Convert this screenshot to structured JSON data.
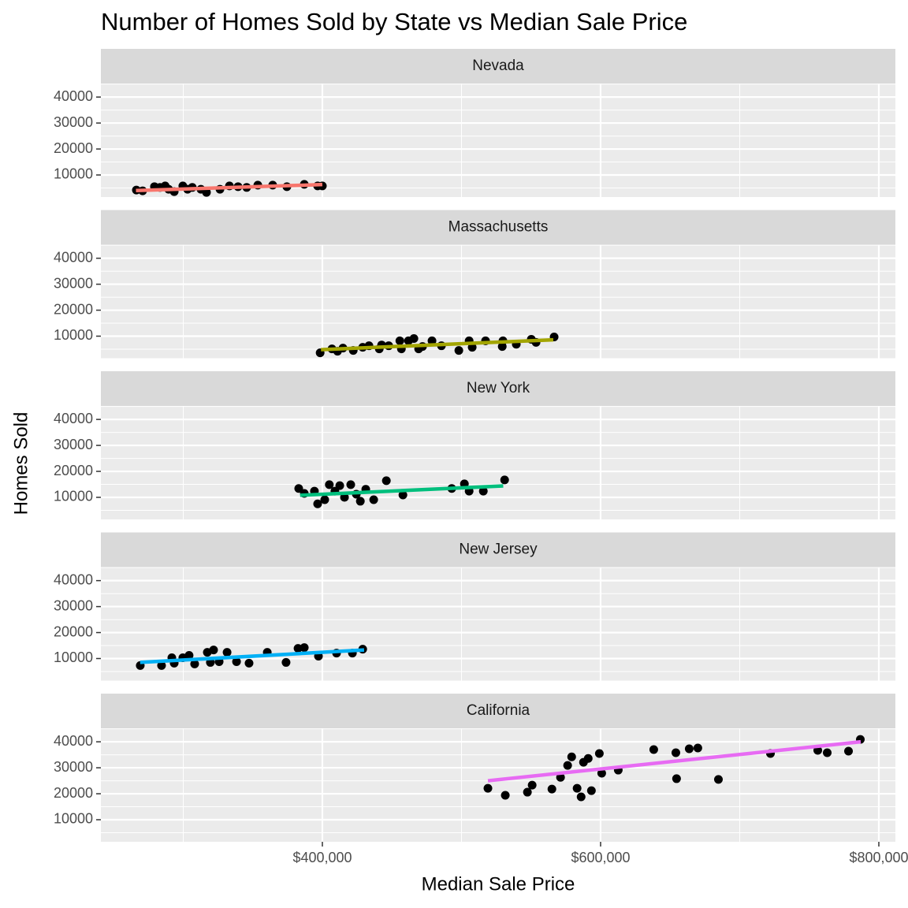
{
  "chart_data": {
    "type": "scatter",
    "title": "Number of Homes Sold by State vs Median Sale Price",
    "xlabel": "Median Sale Price",
    "ylabel": "Homes Sold",
    "facet": true,
    "grid": true,
    "xlim": [
      240800,
      811900
    ],
    "xticks": [
      {
        "value": 400000,
        "label": "$400,000"
      },
      {
        "value": 600000,
        "label": "$600,000"
      },
      {
        "value": 800000,
        "label": "$800,000"
      }
    ],
    "ylim": [
      1500,
      45200
    ],
    "yticks": [
      10000,
      20000,
      30000,
      40000
    ],
    "series": [
      {
        "name": "Nevada",
        "color": "#F8766D",
        "x": [
          266300,
          270800,
          279300,
          283300,
          287000,
          289500,
          293500,
          299700,
          303100,
          306500,
          312700,
          316700,
          326400,
          333200,
          339400,
          345600,
          353600,
          364300,
          374500,
          387000,
          396600,
          400000
        ],
        "values": [
          4200,
          3900,
          5500,
          5200,
          5800,
          4500,
          3600,
          5800,
          4500,
          5200,
          4500,
          3300,
          4500,
          5800,
          5500,
          5200,
          6100,
          6100,
          5500,
          6400,
          5800,
          5800
        ],
        "fit": {
          "x": [
            266000,
            400000
          ],
          "y": [
            4000,
            6300
          ]
        }
      },
      {
        "name": "Massachusetts",
        "color": "#A3A500",
        "x": [
          398400,
          406900,
          410900,
          414800,
          422200,
          429000,
          433500,
          440900,
          442600,
          447700,
          455700,
          456800,
          461900,
          465800,
          469200,
          472000,
          478800,
          485600,
          498100,
          505500,
          507700,
          517300,
          529800,
          529300,
          539400,
          550200,
          553600,
          566600
        ],
        "values": [
          3600,
          5100,
          4200,
          5400,
          4500,
          5700,
          6300,
          5100,
          6600,
          6300,
          8200,
          5100,
          8200,
          9100,
          5100,
          6000,
          8200,
          6300,
          4500,
          8200,
          5700,
          8200,
          8200,
          6000,
          6900,
          8800,
          7600,
          9700
        ],
        "fit": {
          "x": [
            399000,
            566000
          ],
          "y": [
            4800,
            8600
          ]
        }
      },
      {
        "name": "New York",
        "color": "#00BF7D",
        "x": [
          383000,
          387000,
          394300,
          396600,
          401700,
          405000,
          409000,
          412500,
          415900,
          420400,
          424400,
          427300,
          431200,
          436900,
          446000,
          457900,
          493000,
          502100,
          505500,
          515700,
          531000
        ],
        "values": [
          13400,
          11500,
          12400,
          7500,
          9100,
          14900,
          12400,
          14500,
          10000,
          14900,
          11200,
          8500,
          13100,
          9100,
          16400,
          10900,
          13400,
          15200,
          12400,
          12400,
          16700
        ],
        "fit": {
          "x": [
            384000,
            530000
          ],
          "y": [
            10800,
            14400
          ]
        }
      },
      {
        "name": "New Jersey",
        "color": "#00B0F6",
        "x": [
          269100,
          284400,
          291800,
          293500,
          299700,
          304200,
          308200,
          317300,
          319500,
          321800,
          325800,
          331500,
          338300,
          347300,
          360400,
          373900,
          382500,
          387000,
          397200,
          410200,
          421600,
          429000
        ],
        "values": [
          7300,
          7300,
          10300,
          8200,
          10300,
          11200,
          7900,
          12400,
          8500,
          13300,
          8800,
          12400,
          8800,
          8200,
          12400,
          8500,
          13900,
          14200,
          10900,
          12100,
          12100,
          13600
        ],
        "fit": {
          "x": [
            269000,
            430000
          ],
          "y": [
            8500,
            13300
          ]
        }
      },
      {
        "name": "California",
        "color": "#E76BF3",
        "x": [
          519000,
          531500,
          547400,
          550800,
          565000,
          571200,
          576300,
          579200,
          583100,
          586000,
          587700,
          591100,
          593400,
          599100,
          600800,
          612700,
          638200,
          654100,
          654600,
          663700,
          669900,
          684700,
          722100,
          756100,
          762900,
          778200,
          786700
        ],
        "values": [
          22100,
          19400,
          20600,
          23300,
          21800,
          26300,
          30900,
          34200,
          22100,
          18800,
          32100,
          33600,
          21200,
          35500,
          27900,
          29100,
          37000,
          35800,
          25800,
          37300,
          37600,
          25500,
          35500,
          36700,
          35800,
          36400,
          40900
        ],
        "fit": {
          "x": [
            519000,
            787000
          ],
          "y": [
            25000,
            40000
          ]
        }
      }
    ]
  }
}
